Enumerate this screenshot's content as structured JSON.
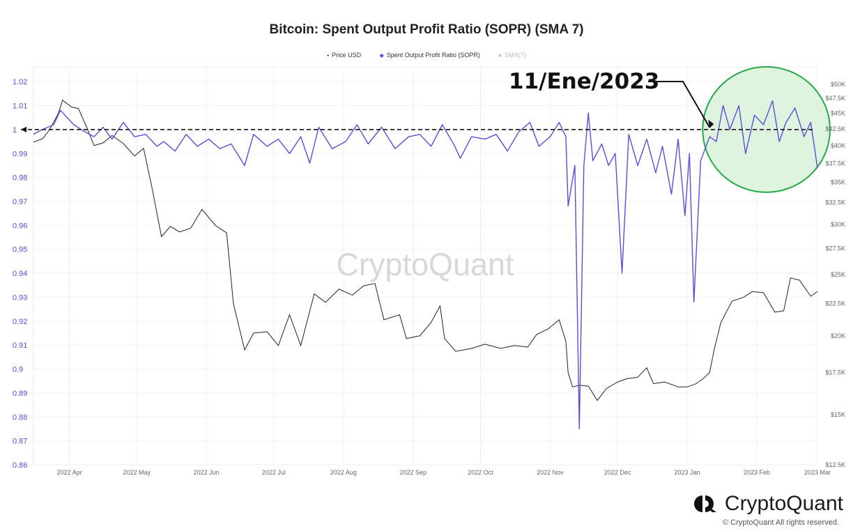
{
  "chart_data": {
    "type": "line",
    "title": "Bitcoin: Spent Output Profit Ratio (SOPR) (SMA 7)",
    "legend": [
      {
        "label": "Price USD",
        "color": "#222222",
        "marker": "•"
      },
      {
        "label": "Spent Output Profit Ratio (SOPR)",
        "color": "#5b4bdb",
        "marker": "◆"
      },
      {
        "label": "SMA(7)",
        "color": "#c8c8d8",
        "marker": "■"
      }
    ],
    "legend_position": "top-center",
    "grid": true,
    "y_left": {
      "ticks": [
        "1.02",
        "1.01",
        "1",
        "0.99",
        "0.98",
        "0.97",
        "0.96",
        "0.95",
        "0.94",
        "0.93",
        "0.92",
        "0.91",
        "0.9",
        "0.89",
        "0.88",
        "0.87",
        "0.86"
      ],
      "range": [
        0.86,
        1.025
      ]
    },
    "y_right": {
      "scale": "log",
      "ticks": [
        "$50K",
        "$47.5K",
        "$45K",
        "$42.5K",
        "$40K",
        "$37.5K",
        "$35K",
        "$32.5K",
        "$30K",
        "$27.5K",
        "$25K",
        "$22.5K",
        "$20K",
        "$17.5K",
        "$15K",
        "$12.5K"
      ],
      "range": [
        12500,
        50000
      ]
    },
    "x_ticks": [
      "2022 Apr",
      "2022 May",
      "2022 Jun",
      "2022 Jul",
      "2022 Aug",
      "2022 Sep",
      "2022 Oct",
      "2022 Nov",
      "2022 Dec",
      "2023 Jan",
      "2023 Feb",
      "2023 Mar"
    ],
    "x_range": [
      "2022-03-16",
      "2023-02-28"
    ],
    "series": [
      {
        "name": "Spent Output Profit Ratio (SOPR)",
        "axis": "left",
        "color": "#5b4bdb",
        "points": [
          [
            "2022-03-16",
            0.998
          ],
          [
            "2022-03-20",
            1.0
          ],
          [
            "2022-03-25",
            1.002
          ],
          [
            "2022-03-28",
            1.008
          ],
          [
            "2022-03-30",
            1.006
          ],
          [
            "2022-04-03",
            1.002
          ],
          [
            "2022-04-08",
            0.999
          ],
          [
            "2022-04-12",
            0.997
          ],
          [
            "2022-04-16",
            1.001
          ],
          [
            "2022-04-20",
            0.996
          ],
          [
            "2022-04-25",
            1.003
          ],
          [
            "2022-04-30",
            0.997
          ],
          [
            "2022-05-05",
            0.998
          ],
          [
            "2022-05-10",
            0.993
          ],
          [
            "2022-05-13",
            0.995
          ],
          [
            "2022-05-18",
            0.991
          ],
          [
            "2022-05-23",
            0.998
          ],
          [
            "2022-05-28",
            0.993
          ],
          [
            "2022-06-02",
            0.996
          ],
          [
            "2022-06-07",
            0.992
          ],
          [
            "2022-06-12",
            0.994
          ],
          [
            "2022-06-18",
            0.985
          ],
          [
            "2022-06-22",
            0.998
          ],
          [
            "2022-06-28",
            0.993
          ],
          [
            "2022-07-03",
            0.996
          ],
          [
            "2022-07-08",
            0.99
          ],
          [
            "2022-07-13",
            0.997
          ],
          [
            "2022-07-17",
            0.986
          ],
          [
            "2022-07-21",
            1.001
          ],
          [
            "2022-07-27",
            0.992
          ],
          [
            "2022-08-02",
            0.995
          ],
          [
            "2022-08-07",
            1.002
          ],
          [
            "2022-08-12",
            0.994
          ],
          [
            "2022-08-18",
            1.001
          ],
          [
            "2022-08-24",
            0.992
          ],
          [
            "2022-08-30",
            0.997
          ],
          [
            "2022-09-04",
            0.998
          ],
          [
            "2022-09-09",
            0.993
          ],
          [
            "2022-09-14",
            1.002
          ],
          [
            "2022-09-19",
            0.994
          ],
          [
            "2022-09-22",
            0.988
          ],
          [
            "2022-09-27",
            0.997
          ],
          [
            "2022-10-03",
            0.996
          ],
          [
            "2022-10-08",
            0.998
          ],
          [
            "2022-10-13",
            0.991
          ],
          [
            "2022-10-18",
            0.999
          ],
          [
            "2022-10-23",
            1.003
          ],
          [
            "2022-10-27",
            0.993
          ],
          [
            "2022-11-01",
            0.997
          ],
          [
            "2022-11-05",
            1.003
          ],
          [
            "2022-11-08",
            0.997
          ],
          [
            "2022-11-09",
            0.968
          ],
          [
            "2022-11-12",
            0.985
          ],
          [
            "2022-11-14",
            0.875
          ],
          [
            "2022-11-16",
            0.985
          ],
          [
            "2022-11-18",
            1.007
          ],
          [
            "2022-11-20",
            0.987
          ],
          [
            "2022-11-24",
            0.994
          ],
          [
            "2022-11-27",
            0.985
          ],
          [
            "2022-11-30",
            0.99
          ],
          [
            "2022-12-03",
            0.94
          ],
          [
            "2022-12-06",
            0.998
          ],
          [
            "2022-12-10",
            0.985
          ],
          [
            "2022-12-14",
            0.996
          ],
          [
            "2022-12-18",
            0.982
          ],
          [
            "2022-12-21",
            0.993
          ],
          [
            "2022-12-25",
            0.973
          ],
          [
            "2022-12-28",
            0.996
          ],
          [
            "2022-12-31",
            0.964
          ],
          [
            "2023-01-02",
            0.99
          ],
          [
            "2023-01-04",
            0.928
          ],
          [
            "2023-01-07",
            0.987
          ],
          [
            "2023-01-11",
            0.997
          ],
          [
            "2023-01-14",
            0.995
          ],
          [
            "2023-01-17",
            1.01
          ],
          [
            "2023-01-20",
            1.0
          ],
          [
            "2023-01-24",
            1.01
          ],
          [
            "2023-01-27",
            0.99
          ],
          [
            "2023-01-31",
            1.006
          ],
          [
            "2023-02-04",
            1.002
          ],
          [
            "2023-02-08",
            1.012
          ],
          [
            "2023-02-11",
            0.995
          ],
          [
            "2023-02-14",
            1.003
          ],
          [
            "2023-02-18",
            1.009
          ],
          [
            "2023-02-22",
            0.997
          ],
          [
            "2023-02-25",
            1.003
          ],
          [
            "2023-02-28",
            0.984
          ]
        ]
      },
      {
        "name": "Price USD",
        "axis": "right",
        "color": "#222222",
        "points": [
          [
            "2022-03-16",
            40500
          ],
          [
            "2022-03-20",
            41000
          ],
          [
            "2022-03-23",
            42300
          ],
          [
            "2022-03-27",
            44900
          ],
          [
            "2022-03-29",
            47200
          ],
          [
            "2022-04-02",
            46000
          ],
          [
            "2022-04-05",
            45800
          ],
          [
            "2022-04-09",
            42500
          ],
          [
            "2022-04-12",
            40000
          ],
          [
            "2022-04-16",
            40400
          ],
          [
            "2022-04-20",
            41500
          ],
          [
            "2022-04-25",
            40300
          ],
          [
            "2022-04-30",
            38500
          ],
          [
            "2022-05-04",
            39600
          ],
          [
            "2022-05-08",
            34000
          ],
          [
            "2022-05-12",
            28700
          ],
          [
            "2022-05-16",
            29800
          ],
          [
            "2022-05-20",
            29200
          ],
          [
            "2022-05-25",
            29600
          ],
          [
            "2022-05-30",
            31700
          ],
          [
            "2022-06-05",
            29900
          ],
          [
            "2022-06-10",
            29100
          ],
          [
            "2022-06-13",
            22500
          ],
          [
            "2022-06-18",
            19000
          ],
          [
            "2022-06-22",
            20200
          ],
          [
            "2022-06-28",
            20300
          ],
          [
            "2022-07-03",
            19300
          ],
          [
            "2022-07-08",
            21600
          ],
          [
            "2022-07-13",
            19300
          ],
          [
            "2022-07-19",
            23300
          ],
          [
            "2022-07-24",
            22600
          ],
          [
            "2022-07-30",
            23700
          ],
          [
            "2022-08-05",
            23200
          ],
          [
            "2022-08-10",
            24000
          ],
          [
            "2022-08-15",
            24200
          ],
          [
            "2022-08-19",
            21200
          ],
          [
            "2022-08-26",
            21600
          ],
          [
            "2022-08-29",
            19800
          ],
          [
            "2022-09-04",
            20000
          ],
          [
            "2022-09-09",
            21000
          ],
          [
            "2022-09-13",
            22300
          ],
          [
            "2022-09-15",
            19800
          ],
          [
            "2022-09-20",
            18900
          ],
          [
            "2022-09-27",
            19100
          ],
          [
            "2022-10-03",
            19400
          ],
          [
            "2022-10-10",
            19100
          ],
          [
            "2022-10-16",
            19300
          ],
          [
            "2022-10-22",
            19200
          ],
          [
            "2022-10-26",
            20100
          ],
          [
            "2022-10-31",
            20500
          ],
          [
            "2022-11-05",
            21200
          ],
          [
            "2022-11-08",
            19600
          ],
          [
            "2022-11-09",
            17500
          ],
          [
            "2022-11-11",
            16600
          ],
          [
            "2022-11-14",
            16700
          ],
          [
            "2022-11-18",
            16650
          ],
          [
            "2022-11-22",
            15800
          ],
          [
            "2022-11-26",
            16500
          ],
          [
            "2022-12-01",
            16900
          ],
          [
            "2022-12-05",
            17100
          ],
          [
            "2022-12-10",
            17200
          ],
          [
            "2022-12-14",
            17800
          ],
          [
            "2022-12-17",
            16800
          ],
          [
            "2022-12-22",
            16900
          ],
          [
            "2022-12-28",
            16600
          ],
          [
            "2023-01-01",
            16600
          ],
          [
            "2023-01-05",
            16800
          ],
          [
            "2023-01-08",
            17100
          ],
          [
            "2023-01-11",
            17500
          ],
          [
            "2023-01-13",
            19000
          ],
          [
            "2023-01-16",
            21000
          ],
          [
            "2023-01-21",
            22700
          ],
          [
            "2023-01-26",
            23000
          ],
          [
            "2023-01-30",
            23500
          ],
          [
            "2023-02-04",
            23400
          ],
          [
            "2023-02-09",
            21800
          ],
          [
            "2023-02-13",
            21900
          ],
          [
            "2023-02-16",
            24700
          ],
          [
            "2023-02-20",
            24500
          ],
          [
            "2023-02-25",
            23100
          ],
          [
            "2023-02-28",
            23500
          ]
        ]
      },
      {
        "name": "SMA(7)",
        "axis": "left",
        "color": "#c8c8d8",
        "points": []
      }
    ],
    "annotation": {
      "text": "11/Ene/2023",
      "reference_value": 1.0,
      "target_date": "2023-01-11",
      "highlight_range": [
        "2023-01-11",
        "2023-02-28"
      ],
      "highlight_color": "#d9f2d9",
      "highlight_stroke": "#22aa44"
    },
    "watermark": "CryptoQuant"
  },
  "footer": {
    "brand": "CryptoQuant",
    "copyright": "© CryptoQuant All rights reserved."
  }
}
